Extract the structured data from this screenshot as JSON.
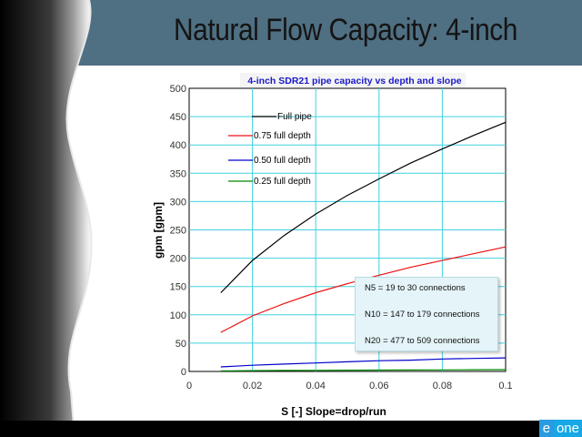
{
  "slide": {
    "title": "Natural Flow Capacity: 4-inch",
    "logo": {
      "e": "e",
      "rest": "one"
    }
  },
  "colors": {
    "header": "#4f6f82",
    "grid": "#40d0e0",
    "full": "#000000",
    "three_quarter": "#ee1111",
    "half": "#0000cc",
    "quarter": "#008800"
  },
  "chart_data": {
    "type": "line",
    "title": "4-inch SDR21 pipe capacity vs depth and slope",
    "xlabel": "S  [-] Slope=drop/run",
    "ylabel": "gpm  [gpm]",
    "xlim": [
      0,
      0.1
    ],
    "ylim": [
      0,
      500
    ],
    "xticks": [
      0,
      0.02,
      0.04,
      0.06,
      0.08,
      0.1
    ],
    "xtick_labels": [
      "0",
      "0.02",
      "0.04",
      "0.06",
      "0.08",
      "0.1"
    ],
    "yticks": [
      0,
      50,
      100,
      150,
      200,
      250,
      300,
      350,
      400,
      450,
      500
    ],
    "grid": true,
    "legend_position": "top-left",
    "x": [
      0.01,
      0.02,
      0.03,
      0.04,
      0.05,
      0.06,
      0.07,
      0.08,
      0.09,
      0.1
    ],
    "series": [
      {
        "name": "Full pipe",
        "color": "#000000",
        "values": [
          139,
          196,
          240,
          278,
          311,
          340,
          368,
          393,
          417,
          440
        ]
      },
      {
        "name": "0.75 full depth",
        "color": "#ee1111",
        "values": [
          69,
          98,
          120,
          139,
          155,
          170,
          184,
          196,
          208,
          220
        ]
      },
      {
        "name": "0.50 full depth",
        "color": "#0000cc",
        "values": [
          8,
          11,
          13,
          15,
          17,
          19,
          20,
          22,
          23,
          24
        ]
      },
      {
        "name": "0.25 full depth",
        "color": "#008800",
        "values": [
          1,
          1.4,
          1.7,
          2,
          2.2,
          2.4,
          2.6,
          2.8,
          3,
          3.2
        ]
      }
    ],
    "annotations": [
      "N5 = 19 to 30 connections",
      "N10 = 147 to 179 connections",
      "N20 = 477 to 509 connections"
    ]
  }
}
